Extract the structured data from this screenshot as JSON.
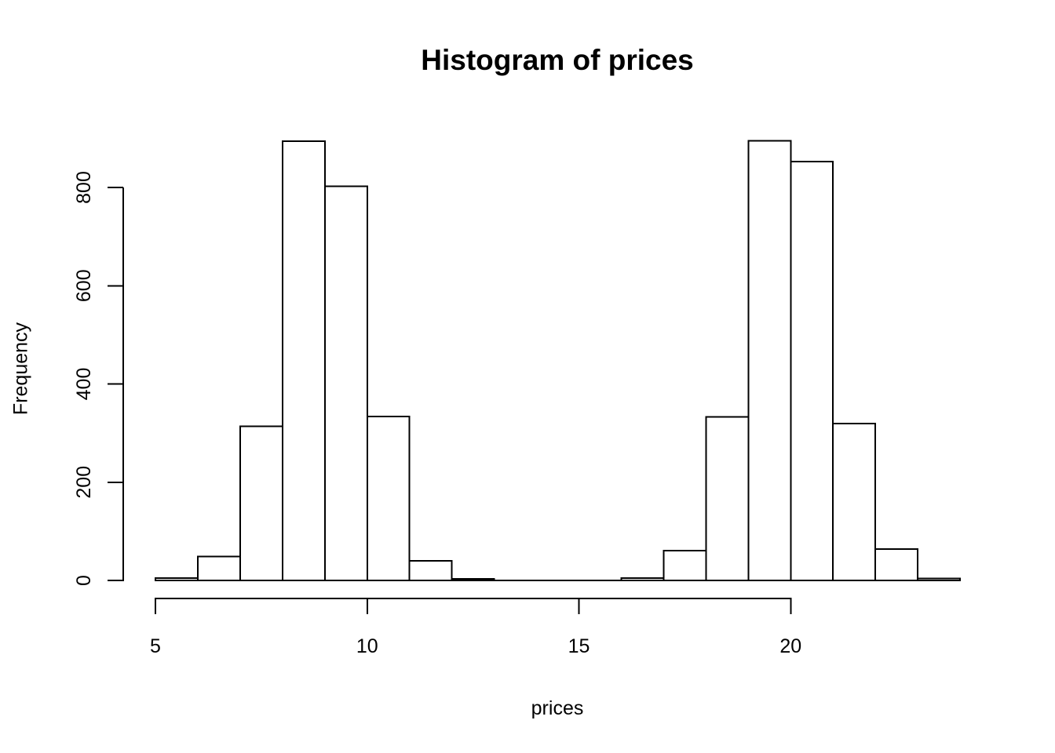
{
  "chart_data": {
    "type": "bar",
    "variant": "histogram",
    "title": "Histogram of prices",
    "xlabel": "prices",
    "ylabel": "Frequency",
    "bin_width": 1,
    "bin_edges": [
      5,
      6,
      7,
      8,
      9,
      10,
      11,
      12,
      13,
      14,
      15,
      16,
      17,
      18,
      19,
      20,
      21,
      22,
      23,
      24
    ],
    "counts": [
      5,
      49,
      314,
      894,
      802,
      334,
      40,
      3,
      0,
      0,
      0,
      5,
      61,
      333,
      895,
      853,
      319,
      64,
      4
    ],
    "x_ticks": [
      5,
      10,
      15,
      20
    ],
    "y_ticks": [
      0,
      200,
      400,
      600,
      800
    ],
    "xlim": [
      5,
      24
    ],
    "ylim": [
      0,
      895
    ],
    "grid": false,
    "legend_position": "none",
    "bar_fill": "#ffffff",
    "bar_stroke": "#000000",
    "axis_color": "#000000",
    "text_color": "#000000",
    "background": "#ffffff"
  }
}
